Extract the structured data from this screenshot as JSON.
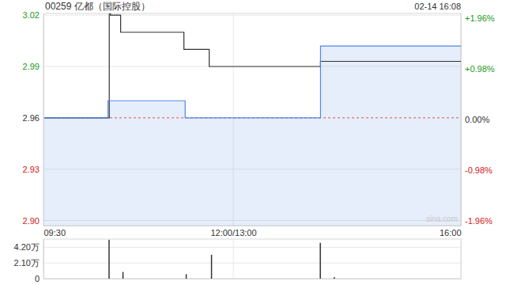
{
  "chart_data": [
    {
      "type": "line",
      "title": "00259 亿都（国际控股）",
      "subtitle": "02-14 16:08",
      "annotations": [
        "sina.com"
      ],
      "x": [
        0,
        51,
        52,
        53,
        61,
        111,
        112,
        131,
        219,
        330
      ],
      "series": [
        {
          "type": "line",
          "color": "#333333",
          "values": [
            2.96,
            2.96,
            3.021,
            3.02,
            3.01,
            3.0,
            3.0,
            2.99,
            2.993,
            2.993
          ]
        },
        {
          "type": "area",
          "color": "#4f86e6",
          "values": [
            2.96,
            2.97,
            2.97,
            2.97,
            2.97,
            2.97,
            2.96,
            2.96,
            3.002,
            3.002
          ]
        }
      ],
      "xlim": [
        0,
        330
      ],
      "xticks": [
        {
          "value": 0,
          "label": "09:30"
        },
        {
          "value": 150,
          "label": "12:00/13:00"
        },
        {
          "value": 330,
          "label": "16:00"
        }
      ],
      "ylim": [
        2.897,
        3.021
      ],
      "yticks": [
        3.02,
        2.99,
        2.96,
        2.93,
        {
          "value": 2.9,
          "label": "2.90"
        }
      ],
      "y2lim": [
        -2.058,
        2.058
      ],
      "y2ticks": [
        {
          "value": 1.96,
          "label": "+1.96%"
        },
        {
          "value": 0.98,
          "label": "+0.98%"
        },
        {
          "value": 0,
          "label": "0.00%"
        },
        {
          "value": -0.98,
          "label": "-0.98%"
        },
        {
          "value": -1.96,
          "label": "-1.96%"
        }
      ],
      "baseline": 2.96,
      "grid": true
    },
    {
      "type": "bar",
      "x": [
        52,
        63,
        113,
        133,
        219,
        230
      ],
      "values": [
        5.2,
        0.9,
        0.6,
        3.2,
        4.8,
        0.2
      ],
      "color": "#333333",
      "xlim": [
        0,
        330
      ],
      "xticks": [
        0,
        150,
        330
      ],
      "ylim": [
        0,
        5.3
      ],
      "yticks": [
        {
          "value": 4.2,
          "label": "4.20万"
        },
        {
          "value": 2.1,
          "label": "2.10万"
        },
        0
      ],
      "tick_labels": "y",
      "grid": true
    }
  ]
}
